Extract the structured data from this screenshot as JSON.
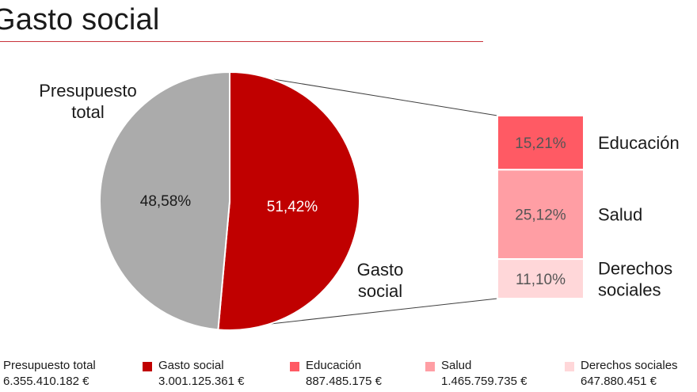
{
  "title": "Gasto social",
  "colors": {
    "gasto_social": "#c00000",
    "presupuesto_total": "#ababab",
    "educacion": "#ff5a64",
    "salud": "#ff9ea4",
    "derechos_sociales": "#ffd7d9",
    "title_rule": "#c8323a"
  },
  "chart_data": {
    "type": "pie",
    "title": "Gasto social",
    "pie": {
      "slices": [
        {
          "name": "Gasto social",
          "value": 51.42,
          "pct_label": "51,42%",
          "outer_label": [
            "Gasto",
            "social"
          ],
          "color": "#c00000"
        },
        {
          "name": "Presupuesto total",
          "value": 48.58,
          "pct_label": "48,58%",
          "outer_label": [
            "Presupuesto",
            "total"
          ],
          "color": "#ababab"
        }
      ]
    },
    "breakdown": {
      "of": "Gasto social",
      "segments": [
        {
          "name": "Educación",
          "value": 15.21,
          "pct_label": "15,21%",
          "label_lines": [
            "Educación"
          ],
          "color": "#ff5a64"
        },
        {
          "name": "Salud",
          "value": 25.12,
          "pct_label": "25,12%",
          "label_lines": [
            "Salud"
          ],
          "color": "#ff9ea4"
        },
        {
          "name": "Derechos sociales",
          "value": 11.1,
          "pct_label": "11,10%",
          "label_lines": [
            "Derechos",
            "sociales"
          ],
          "color": "#ffd7d9"
        }
      ]
    },
    "legend": [
      {
        "name": "Presupuesto total",
        "amount": "6.355.410.182 €",
        "color": "#ababab"
      },
      {
        "name": "Gasto social",
        "amount": "3.001.125.361  €",
        "color": "#c00000"
      },
      {
        "name": "Educación",
        "amount": "887.485.175 €",
        "color": "#ff5a64"
      },
      {
        "name": "Salud",
        "amount": "1.465.759.735  €",
        "color": "#ff9ea4"
      },
      {
        "name": "Derechos sociales",
        "amount": "647.880.451  €",
        "color": "#ffd7d9"
      }
    ]
  }
}
